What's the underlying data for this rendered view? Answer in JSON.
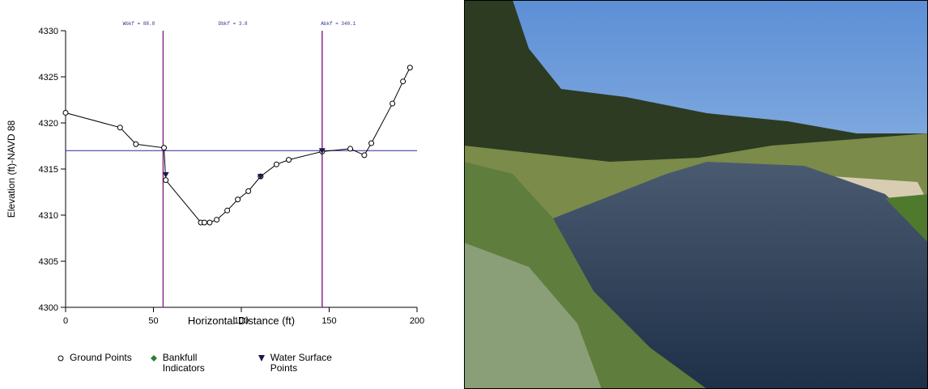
{
  "chart_data": {
    "type": "scatter",
    "xlabel": "Horizontal Distance (ft)",
    "ylabel": "Elevation (ft)-NAVD 88",
    "xlim": [
      0,
      200
    ],
    "xticks": [
      0,
      50,
      100,
      150,
      200
    ],
    "ylim": [
      4300,
      4330
    ],
    "yticks": [
      4300,
      4305,
      4310,
      4315,
      4320,
      4325,
      4330
    ],
    "annotations": [
      "Wbkf = 88.8",
      "Dbkf = 3.8",
      "Abkf = 340.1"
    ],
    "hlines": [
      4317
    ],
    "hline_color": "#2a2a9a",
    "vlines": [
      55.5,
      146
    ],
    "vline_color": "#8a2a8a",
    "series": [
      {
        "name": "Ground Points",
        "marker": "circle",
        "line": true,
        "color": "#000000",
        "x": [
          0,
          31,
          40,
          56,
          57,
          77,
          79,
          82,
          86,
          92,
          98,
          104,
          111,
          120,
          127,
          146,
          162,
          170,
          174,
          186,
          192,
          196
        ],
        "values": [
          4321.1,
          4319.5,
          4317.7,
          4317.3,
          4313.8,
          4309.2,
          4309.2,
          4309.2,
          4309.5,
          4310.5,
          4311.7,
          4312.6,
          4314.2,
          4315.5,
          4316.0,
          4316.9,
          4317.2,
          4316.5,
          4317.8,
          4322.1,
          4324.5,
          4326.0
        ]
      },
      {
        "name": "Bankfull Indicators",
        "marker": "diamond",
        "line": false,
        "color": "#2e7d32",
        "x": [],
        "values": []
      },
      {
        "name": "Water Surface Points",
        "marker": "triangle",
        "line": false,
        "color": "#1a1a4a",
        "x": [
          57,
          111,
          146
        ],
        "values": [
          4314.4,
          4314.2,
          4317.0
        ]
      }
    ]
  }
}
